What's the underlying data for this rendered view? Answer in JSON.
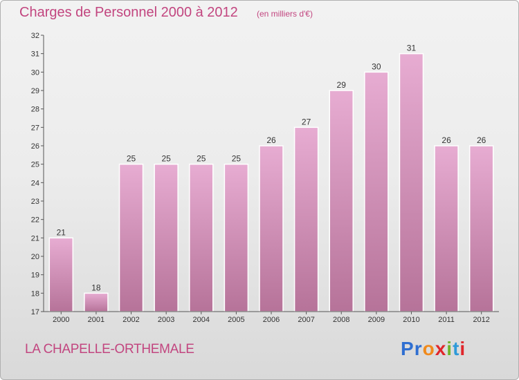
{
  "page": {
    "title": "Charges de Personnel 2000 à 2012",
    "subtitle": "(en milliers d'€)",
    "commune": "LA CHAPELLE-ORTHEMALE",
    "logo": {
      "text": "Proxiti",
      "letters": [
        "P",
        "r",
        "o",
        "x",
        "i",
        "t",
        "i"
      ],
      "colors": [
        "#2f6fd1",
        "#2f6fd1",
        "#f08a1c",
        "#e0262b",
        "#6fb52c",
        "#2f9ad8",
        "#e0262b"
      ]
    }
  },
  "colors": {
    "bar_top": "#e7acd2",
    "bar_bottom": "#b67399",
    "title": "#c2457f",
    "axis": "#555555"
  },
  "chart_data": {
    "type": "bar",
    "title": "Charges de Personnel 2000 à 2012",
    "subtitle": "(en milliers d'€)",
    "categories": [
      "2000",
      "2001",
      "2002",
      "2003",
      "2004",
      "2005",
      "2006",
      "2007",
      "2008",
      "2009",
      "2010",
      "2011",
      "2012"
    ],
    "values": [
      21,
      18,
      25,
      25,
      25,
      25,
      26,
      27,
      29,
      30,
      31,
      26,
      26
    ],
    "ylim": [
      17,
      32
    ],
    "yticks": [
      17,
      18,
      19,
      20,
      21,
      22,
      23,
      24,
      25,
      26,
      27,
      28,
      29,
      30,
      31,
      32
    ],
    "grid": false,
    "xlabel": "",
    "ylabel": ""
  }
}
